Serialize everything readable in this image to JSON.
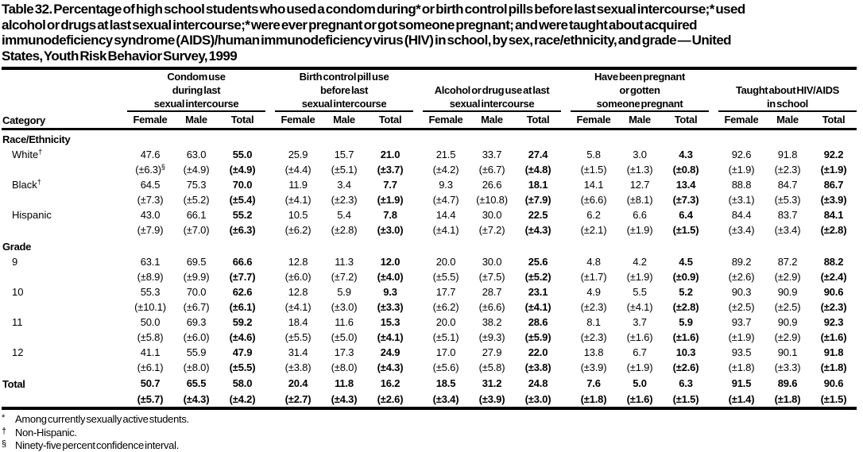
{
  "title": {
    "text": "Table 32. Percentage of high school students who used a condom during* or birth control pills before last sexual intercourse;* used alcohol or drugs at last sexual intercourse;* were ever pregnant or got someone pregnant; and were taught about acquired immunodeficiency syndrome (AIDS)/human immunodeficiency virus (HIV) in school, by sex, race/ethnicity, and grade — United States, Youth Risk Behavior Survey, 1999",
    "lines": [
      "Table 32. Percentage of high school students who used a condom during* or birth control pills before last sexual intercourse;* used",
      "alcohol or drugs at last sexual intercourse;* were ever pregnant or got someone pregnant; and were taught about acquired",
      "immunodeficiency syndrome (AIDS)/human immunodeficiency virus (HIV) in school, by sex, race/ethnicity, and grade — United",
      "States, Youth Risk Behavior Survey, 1999"
    ]
  },
  "table": {
    "category_header": "Category",
    "groups": [
      {
        "label": "Condom use during last sexual intercourse",
        "lines": [
          "Condom use",
          "during last",
          "sexual intercourse"
        ]
      },
      {
        "label": "Birth control pill use before last sexual intercourse",
        "lines": [
          "Birth control pill use",
          "before last",
          "sexual intercourse"
        ]
      },
      {
        "label": "Alcohol or drug use at last sexual intercourse",
        "lines": [
          "Alcohol or drug use at last",
          "sexual intercourse"
        ]
      },
      {
        "label": "Have been pregnant or gotten someone pregnant",
        "lines": [
          "Have been pregnant",
          "or gotten",
          "someone pregnant"
        ]
      },
      {
        "label": "Taught about HIV/AIDS in school",
        "lines": [
          "Taught about HIV/AIDS",
          "in school"
        ]
      }
    ],
    "subheaders": [
      "Female",
      "Male",
      "Total"
    ],
    "sections": [
      {
        "header": "Race/Ethnicity",
        "rows": [
          {
            "label": "White",
            "sup": "†",
            "ci_sup": "§",
            "values": [
              "47.6",
              "63.0",
              "55.0",
              "25.9",
              "15.7",
              "21.0",
              "21.5",
              "33.7",
              "27.4",
              "5.8",
              "3.0",
              "4.3",
              "92.6",
              "91.8",
              "92.2"
            ],
            "ci": [
              "(±6.3)",
              "(±4.9)",
              "(±4.9)",
              "(±4.4)",
              "(±5.1)",
              "(±3.7)",
              "(±4.2)",
              "(±6.7)",
              "(±4.8)",
              "(±1.5)",
              "(±1.3)",
              "(±0.8)",
              "(±1.9)",
              "(±2.3)",
              "(±1.9)"
            ]
          },
          {
            "label": "Black",
            "sup": "†",
            "ci_sup": "",
            "values": [
              "64.5",
              "75.3",
              "70.0",
              "11.9",
              "3.4",
              "7.7",
              "9.3",
              "26.6",
              "18.1",
              "14.1",
              "12.7",
              "13.4",
              "88.8",
              "84.7",
              "86.7"
            ],
            "ci": [
              "(±7.3)",
              "(±5.2)",
              "(±5.4)",
              "(±4.1)",
              "(±2.3)",
              "(±1.9)",
              "(±4.7)",
              "(±10.8)",
              "(±7.9)",
              "(±6.6)",
              "(±8.1)",
              "(±7.3)",
              "(±3.1)",
              "(±5.3)",
              "(±3.9)"
            ]
          },
          {
            "label": "Hispanic",
            "sup": "",
            "ci_sup": "",
            "values": [
              "43.0",
              "66.1",
              "55.2",
              "10.5",
              "5.4",
              "7.8",
              "14.4",
              "30.0",
              "22.5",
              "6.2",
              "6.6",
              "6.4",
              "84.4",
              "83.7",
              "84.1"
            ],
            "ci": [
              "(±7.9)",
              "(±7.0)",
              "(±6.3)",
              "(±6.2)",
              "(±2.8)",
              "(±3.0)",
              "(±4.1)",
              "(±7.2)",
              "(±4.3)",
              "(±2.1)",
              "(±1.9)",
              "(±1.5)",
              "(±3.4)",
              "(±3.4)",
              "(±2.8)"
            ]
          }
        ]
      },
      {
        "header": "Grade",
        "rows": [
          {
            "label": "9",
            "sup": "",
            "ci_sup": "",
            "values": [
              "63.1",
              "69.5",
              "66.6",
              "12.8",
              "11.3",
              "12.0",
              "20.0",
              "30.0",
              "25.6",
              "4.8",
              "4.2",
              "4.5",
              "89.2",
              "87.2",
              "88.2"
            ],
            "ci": [
              "(±8.9)",
              "(±9.9)",
              "(±7.7)",
              "(±6.0)",
              "(±7.2)",
              "(±4.0)",
              "(±5.5)",
              "(±7.5)",
              "(±5.2)",
              "(±1.7)",
              "(±1.9)",
              "(±0.9)",
              "(±2.6)",
              "(±2.9)",
              "(±2.4)"
            ]
          },
          {
            "label": "10",
            "sup": "",
            "ci_sup": "",
            "values": [
              "55.3",
              "70.0",
              "62.6",
              "12.8",
              "5.9",
              "9.3",
              "17.7",
              "28.7",
              "23.1",
              "4.9",
              "5.5",
              "5.2",
              "90.3",
              "90.9",
              "90.6"
            ],
            "ci": [
              "(±10.1)",
              "(±6.7)",
              "(±6.1)",
              "(±4.1)",
              "(±3.0)",
              "(±3.3)",
              "(±6.2)",
              "(±6.6)",
              "(±4.1)",
              "(±2.3)",
              "(±4.1)",
              "(±2.8)",
              "(±2.5)",
              "(±2.5)",
              "(±2.3)"
            ]
          },
          {
            "label": "11",
            "sup": "",
            "ci_sup": "",
            "values": [
              "50.0",
              "69.3",
              "59.2",
              "18.4",
              "11.6",
              "15.3",
              "20.0",
              "38.2",
              "28.6",
              "8.1",
              "3.7",
              "5.9",
              "93.7",
              "90.9",
              "92.3"
            ],
            "ci": [
              "(±5.8)",
              "(±6.0)",
              "(±4.6)",
              "(±5.5)",
              "(±5.0)",
              "(±4.1)",
              "(±5.1)",
              "(±9.3)",
              "(±5.9)",
              "(±2.3)",
              "(±1.6)",
              "(±1.6)",
              "(±1.9)",
              "(±2.9)",
              "(±1.6)"
            ]
          },
          {
            "label": "12",
            "sup": "",
            "ci_sup": "",
            "values": [
              "41.1",
              "55.9",
              "47.9",
              "31.4",
              "17.3",
              "24.9",
              "17.0",
              "27.9",
              "22.0",
              "13.8",
              "6.7",
              "10.3",
              "93.5",
              "90.1",
              "91.8"
            ],
            "ci": [
              "(±6.1)",
              "(±8.0)",
              "(±5.5)",
              "(±3.8)",
              "(±8.0)",
              "(±4.3)",
              "(±5.6)",
              "(±5.8)",
              "(±3.8)",
              "(±3.9)",
              "(±1.9)",
              "(±2.6)",
              "(±1.8)",
              "(±3.3)",
              "(±1.8)"
            ]
          }
        ]
      }
    ],
    "total": {
      "label": "Total",
      "sup": "",
      "ci_sup": "",
      "values": [
        "50.7",
        "65.5",
        "58.0",
        "20.4",
        "11.8",
        "16.2",
        "18.5",
        "31.2",
        "24.8",
        "7.6",
        "5.0",
        "6.3",
        "91.5",
        "89.6",
        "90.6"
      ],
      "ci": [
        "(±5.7)",
        "(±4.3)",
        "(±4.2)",
        "(±2.7)",
        "(±4.3)",
        "(±2.6)",
        "(±3.4)",
        "(±3.9)",
        "(±3.0)",
        "(±1.8)",
        "(±1.6)",
        "(±1.5)",
        "(±1.4)",
        "(±1.8)",
        "(±1.5)"
      ]
    }
  },
  "footnotes": [
    {
      "sym": "*",
      "text": "Among currently sexually active students."
    },
    {
      "sym": "†",
      "text": "Non-Hispanic."
    },
    {
      "sym": "§",
      "text": "Ninety-five percent confidence interval."
    }
  ]
}
